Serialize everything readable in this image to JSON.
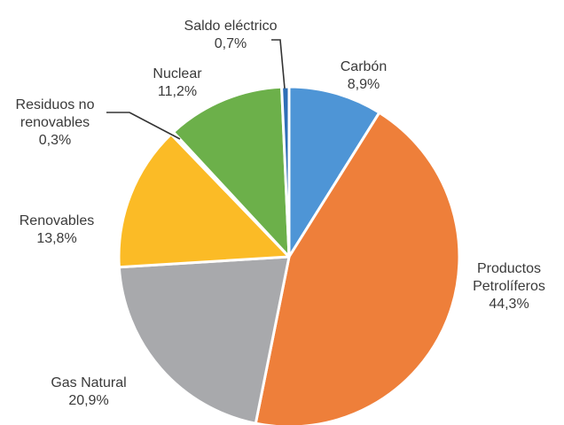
{
  "chart_data": {
    "type": "pie",
    "start": "top",
    "direction": "clockwise",
    "slices": [
      {
        "name": "Carbón",
        "value": 8.9,
        "value_label": "8,9%",
        "color": "#4e95d6"
      },
      {
        "name": "Productos Petrolíferos",
        "label_lines": [
          "Productos",
          "Petrolíferos"
        ],
        "value": 44.3,
        "value_label": "44,3%",
        "color": "#ee7f3a"
      },
      {
        "name": "Gas Natural",
        "value": 20.9,
        "value_label": "20,9%",
        "color": "#a8a9ac"
      },
      {
        "name": "Renovables",
        "value": 13.8,
        "value_label": "13,8%",
        "color": "#fbbb26"
      },
      {
        "name": "Residuos no renovables",
        "label_lines": [
          "Residuos no",
          "renovables"
        ],
        "value": 0.3,
        "value_label": "0,3%",
        "color": "#e0e0e0"
      },
      {
        "name": "Nuclear",
        "value": 11.2,
        "value_label": "11,2%",
        "color": "#6cb04a"
      },
      {
        "name": "Saldo eléctrico",
        "value": 0.7,
        "value_label": "0,7%",
        "color": "#2f6fb6"
      }
    ]
  }
}
